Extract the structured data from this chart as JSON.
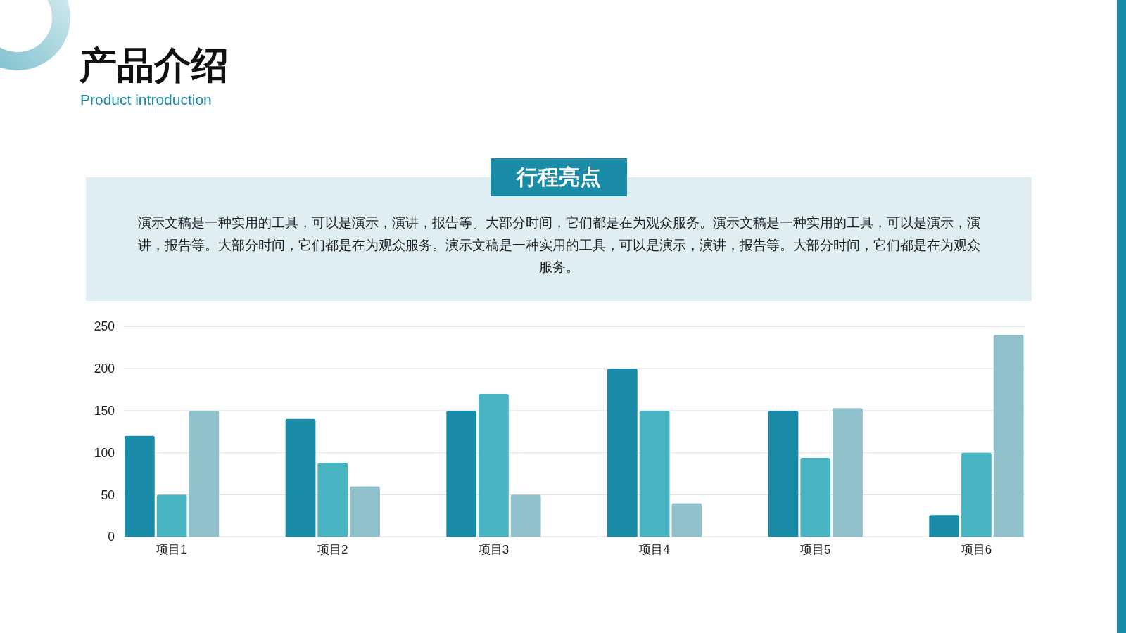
{
  "chart_data": {
    "type": "bar",
    "title": "产品介绍",
    "subtitle": "Product introduction",
    "annotations": [
      "行程亮点",
      "演示文稿是一种实用的工具，可以是演示，演讲，报告等。大部分时间，它们都是在为观众服务。演示文稿是一种实用的工具，可以是演示，演讲，报告等。大部分时间，它们都是在为观众服务。演示文稿是一种实用的工具，可以是演示，演讲，报告等。大部分时间，它们都是在为观众服务。"
    ],
    "categories": [
      "项目1",
      "项目2",
      "项目3",
      "项目4",
      "项目5",
      "项目6"
    ],
    "series": [
      {
        "color": "#1a8ca8",
        "values": [
          120,
          140,
          150,
          200,
          150,
          26
        ]
      },
      {
        "color": "#48b3c1",
        "values": [
          50,
          88,
          170,
          150,
          94,
          100
        ]
      },
      {
        "color": "#90c1cb",
        "values": [
          150,
          60,
          50,
          40,
          153,
          240
        ]
      }
    ],
    "ylim": [
      0,
      250
    ],
    "yticks": [
      0,
      50,
      100,
      150,
      200,
      250
    ],
    "grid": "y"
  }
}
